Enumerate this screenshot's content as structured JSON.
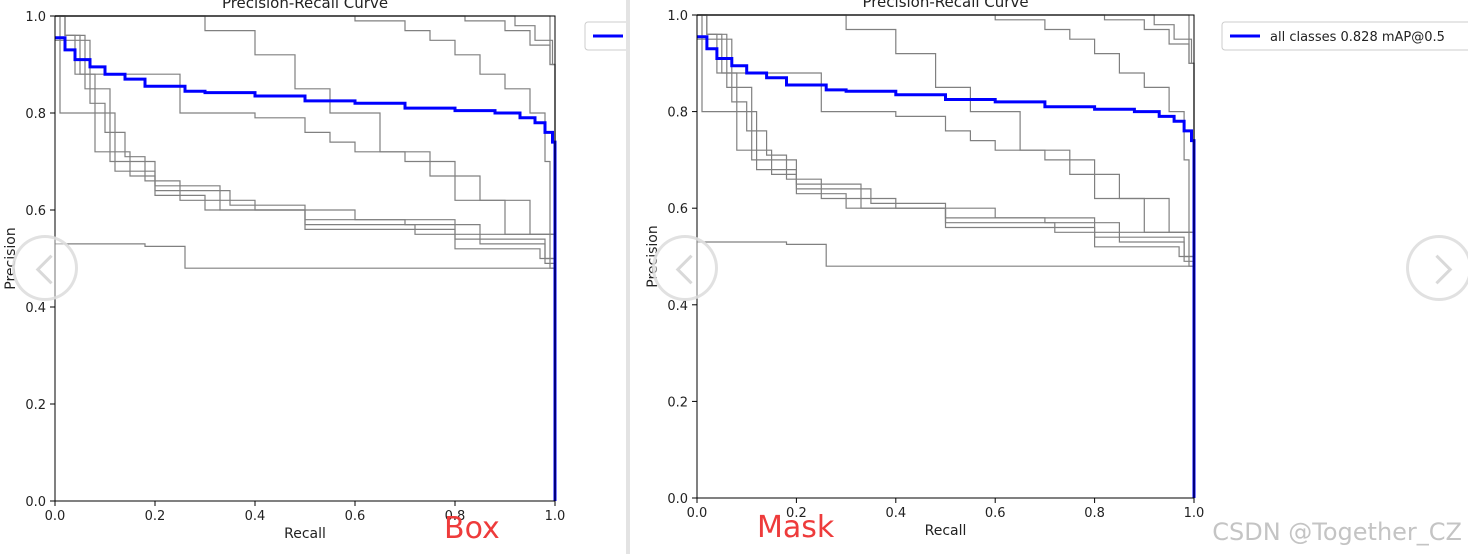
{
  "chart_data": [
    {
      "type": "line",
      "title": "Precision-Recall Curve",
      "xlabel": "Recall",
      "ylabel": "Precision",
      "xlim": [
        0,
        1
      ],
      "ylim": [
        0,
        1
      ],
      "xticks": [
        "0.0",
        "0.2",
        "0.4",
        "0.6",
        "0.8",
        "1.0"
      ],
      "yticks": [
        "0.0",
        "0.2",
        "0.4",
        "0.6",
        "0.8",
        "1.0"
      ],
      "grid": false,
      "legend_position": "outside-right",
      "caption": "Box",
      "colors": {
        "main": "#0000ff",
        "class": "#808080"
      },
      "series": [
        {
          "name": "",
          "label": "",
          "color": "#0000ff",
          "x": [
            0,
            0.02,
            0.04,
            0.07,
            0.1,
            0.14,
            0.18,
            0.26,
            0.3,
            0.4,
            0.5,
            0.6,
            0.7,
            0.8,
            0.88,
            0.93,
            0.96,
            0.98,
            0.995,
            1.0
          ],
          "y": [
            0.955,
            0.93,
            0.91,
            0.895,
            0.88,
            0.87,
            0.855,
            0.845,
            0.842,
            0.835,
            0.825,
            0.82,
            0.81,
            0.805,
            0.8,
            0.79,
            0.78,
            0.76,
            0.74,
            0.0
          ]
        },
        {
          "x": [
            0,
            0.02,
            0.05,
            0.08,
            0.12,
            0.2,
            0.3,
            0.5,
            0.8,
            0.97,
            0.99,
            1.0
          ],
          "y": [
            1.0,
            0.96,
            0.88,
            0.72,
            0.68,
            0.63,
            0.6,
            0.56,
            0.52,
            0.5,
            0.48,
            0.0
          ]
        },
        {
          "x": [
            0,
            0.07,
            0.1,
            0.14,
            0.18,
            0.25,
            0.4,
            0.6,
            0.8,
            0.98,
            1.0
          ],
          "y": [
            0.95,
            0.82,
            0.76,
            0.71,
            0.66,
            0.62,
            0.6,
            0.58,
            0.54,
            0.5,
            0.0
          ]
        },
        {
          "x": [
            0,
            0.01,
            0.09,
            0.12,
            0.15,
            0.2,
            0.35,
            0.5,
            0.7,
            0.85,
            0.99,
            1.0
          ],
          "y": [
            1.0,
            0.8,
            0.8,
            0.72,
            0.67,
            0.64,
            0.61,
            0.58,
            0.57,
            0.55,
            0.5,
            0.0
          ]
        },
        {
          "x": [
            0,
            0.02,
            0.04,
            0.25,
            0.4,
            0.5,
            0.55,
            0.6,
            0.7,
            0.8,
            0.9,
            1.0
          ],
          "y": [
            1.0,
            0.96,
            0.88,
            0.8,
            0.79,
            0.76,
            0.74,
            0.72,
            0.7,
            0.62,
            0.55,
            0.0
          ]
        },
        {
          "x": [
            0,
            0.18,
            0.3,
            0.4,
            0.48,
            0.55,
            0.65,
            0.75,
            0.85,
            0.95,
            1.0
          ],
          "y": [
            1.0,
            1.0,
            0.97,
            0.92,
            0.85,
            0.8,
            0.72,
            0.67,
            0.62,
            0.55,
            0.0
          ]
        },
        {
          "x": [
            0,
            0.02,
            0.18,
            0.26,
            0.5,
            0.7,
            0.9,
            1.0
          ],
          "y": [
            0.53,
            0.53,
            0.525,
            0.48,
            0.48,
            0.48,
            0.48,
            0.0
          ]
        },
        {
          "x": [
            0,
            0.02,
            0.06,
            0.11,
            0.2,
            0.33,
            0.5,
            0.72,
            0.85,
            0.98,
            1.0
          ],
          "y": [
            1.0,
            0.96,
            0.85,
            0.7,
            0.65,
            0.6,
            0.57,
            0.55,
            0.53,
            0.49,
            0.0
          ]
        },
        {
          "x": [
            0,
            0.52,
            0.6,
            0.7,
            0.75,
            0.8,
            0.85,
            0.9,
            0.95,
            0.98,
            0.99,
            1.0
          ],
          "y": [
            1.0,
            1.0,
            0.99,
            0.97,
            0.95,
            0.92,
            0.88,
            0.85,
            0.8,
            0.7,
            0.55,
            0.0
          ]
        },
        {
          "x": [
            0,
            0.7,
            0.82,
            0.9,
            0.95,
            0.99,
            1.0
          ],
          "y": [
            1.0,
            1.0,
            0.99,
            0.97,
            0.94,
            0.9,
            0.0
          ]
        },
        {
          "x": [
            0,
            0.85,
            0.92,
            0.96,
            0.99,
            1.0
          ],
          "y": [
            1.0,
            1.0,
            0.98,
            0.95,
            0.9,
            0.0
          ]
        },
        {
          "x": [
            0,
            0.96,
            0.99,
            0.995,
            1.0
          ],
          "y": [
            1.0,
            1.0,
            0.95,
            0.9,
            0.0
          ]
        }
      ]
    },
    {
      "type": "line",
      "title": "Precision-Recall Curve",
      "xlabel": "Recall",
      "ylabel": "Precision",
      "xlim": [
        0,
        1
      ],
      "ylim": [
        0,
        1
      ],
      "xticks": [
        "0.0",
        "0.2",
        "0.4",
        "0.6",
        "0.8",
        "1.0"
      ],
      "yticks": [
        "0.0",
        "0.2",
        "0.4",
        "0.6",
        "0.8",
        "1.0"
      ],
      "grid": false,
      "legend_position": "outside-right",
      "caption": "Mask",
      "colors": {
        "main": "#0000ff",
        "class": "#808080"
      },
      "series": [
        {
          "name": "all classes 0.828 mAP@0.5",
          "label": "all classes 0.828 mAP@0.5",
          "color": "#0000ff",
          "x": [
            0,
            0.02,
            0.04,
            0.07,
            0.1,
            0.14,
            0.18,
            0.26,
            0.3,
            0.4,
            0.5,
            0.6,
            0.7,
            0.8,
            0.88,
            0.93,
            0.96,
            0.98,
            0.995,
            1.0
          ],
          "y": [
            0.955,
            0.93,
            0.91,
            0.895,
            0.88,
            0.87,
            0.855,
            0.845,
            0.842,
            0.835,
            0.825,
            0.82,
            0.81,
            0.805,
            0.8,
            0.79,
            0.78,
            0.76,
            0.74,
            0.0
          ]
        },
        {
          "x": [
            0,
            0.02,
            0.05,
            0.08,
            0.12,
            0.2,
            0.3,
            0.5,
            0.8,
            0.97,
            0.99,
            1.0
          ],
          "y": [
            1.0,
            0.96,
            0.88,
            0.72,
            0.68,
            0.63,
            0.6,
            0.56,
            0.52,
            0.5,
            0.48,
            0.0
          ]
        },
        {
          "x": [
            0,
            0.07,
            0.1,
            0.14,
            0.18,
            0.25,
            0.4,
            0.6,
            0.8,
            0.98,
            1.0
          ],
          "y": [
            0.95,
            0.82,
            0.76,
            0.71,
            0.66,
            0.62,
            0.6,
            0.58,
            0.54,
            0.5,
            0.0
          ]
        },
        {
          "x": [
            0,
            0.01,
            0.09,
            0.12,
            0.15,
            0.2,
            0.35,
            0.5,
            0.7,
            0.85,
            0.99,
            1.0
          ],
          "y": [
            1.0,
            0.8,
            0.8,
            0.72,
            0.67,
            0.64,
            0.61,
            0.58,
            0.57,
            0.55,
            0.5,
            0.0
          ]
        },
        {
          "x": [
            0,
            0.02,
            0.04,
            0.25,
            0.4,
            0.5,
            0.55,
            0.6,
            0.7,
            0.8,
            0.9,
            1.0
          ],
          "y": [
            1.0,
            0.96,
            0.88,
            0.8,
            0.79,
            0.76,
            0.74,
            0.72,
            0.7,
            0.62,
            0.55,
            0.0
          ]
        },
        {
          "x": [
            0,
            0.18,
            0.3,
            0.4,
            0.48,
            0.55,
            0.65,
            0.75,
            0.85,
            0.95,
            1.0
          ],
          "y": [
            1.0,
            1.0,
            0.97,
            0.92,
            0.85,
            0.8,
            0.72,
            0.67,
            0.62,
            0.55,
            0.0
          ]
        },
        {
          "x": [
            0,
            0.02,
            0.18,
            0.26,
            0.5,
            0.7,
            0.9,
            1.0
          ],
          "y": [
            0.53,
            0.53,
            0.525,
            0.48,
            0.48,
            0.48,
            0.48,
            0.0
          ]
        },
        {
          "x": [
            0,
            0.02,
            0.06,
            0.11,
            0.2,
            0.33,
            0.5,
            0.72,
            0.85,
            0.98,
            1.0
          ],
          "y": [
            1.0,
            0.96,
            0.85,
            0.7,
            0.65,
            0.6,
            0.57,
            0.55,
            0.53,
            0.49,
            0.0
          ]
        },
        {
          "x": [
            0,
            0.52,
            0.6,
            0.7,
            0.75,
            0.8,
            0.85,
            0.9,
            0.95,
            0.98,
            0.99,
            1.0
          ],
          "y": [
            1.0,
            1.0,
            0.99,
            0.97,
            0.95,
            0.92,
            0.88,
            0.85,
            0.8,
            0.7,
            0.55,
            0.0
          ]
        },
        {
          "x": [
            0,
            0.7,
            0.82,
            0.9,
            0.95,
            0.99,
            1.0
          ],
          "y": [
            1.0,
            1.0,
            0.99,
            0.97,
            0.94,
            0.9,
            0.0
          ]
        },
        {
          "x": [
            0,
            0.85,
            0.92,
            0.96,
            0.99,
            1.0
          ],
          "y": [
            1.0,
            1.0,
            0.98,
            0.95,
            0.9,
            0.0
          ]
        },
        {
          "x": [
            0,
            0.96,
            0.99,
            0.995,
            1.0
          ],
          "y": [
            1.0,
            1.0,
            0.95,
            0.9,
            0.0
          ]
        }
      ]
    }
  ],
  "captions": {
    "left": "Box",
    "right": "Mask"
  },
  "watermark": "CSDN @Together_CZ",
  "nav": {
    "prev_icon": "chevron-left-icon",
    "next_icon": "chevron-right-icon"
  }
}
